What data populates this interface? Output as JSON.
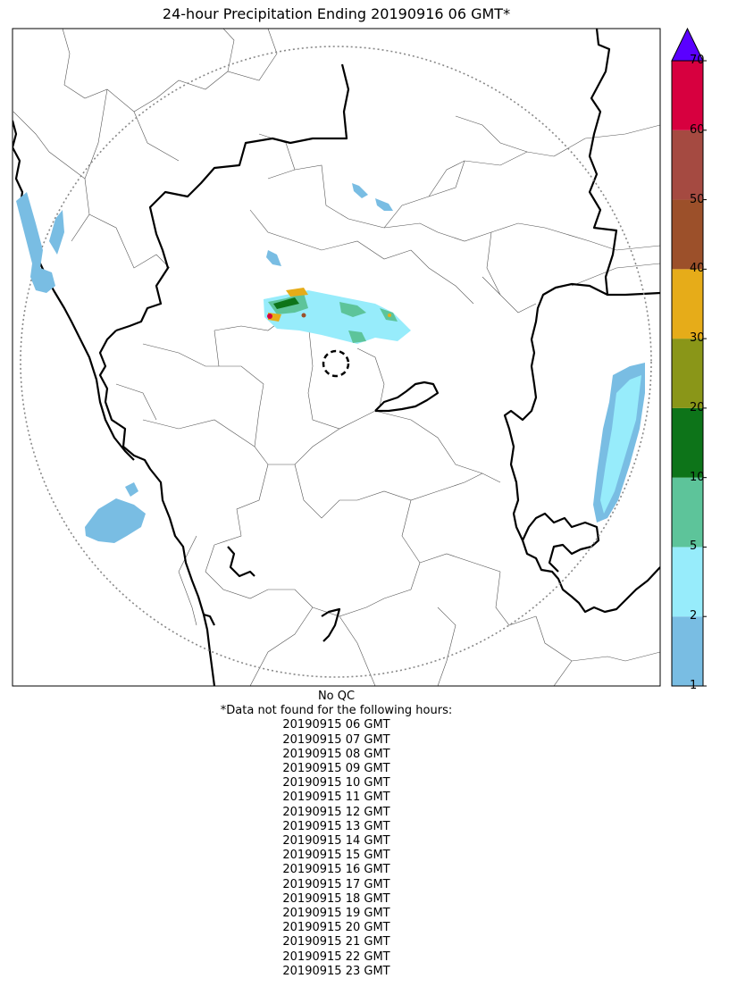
{
  "title": "24-hour Precipitation Ending 20190916 06 GMT*",
  "colorbar": {
    "tick_labels": [
      "1",
      "2",
      "5",
      "10",
      "20",
      "30",
      "40",
      "50",
      "60",
      "70"
    ],
    "colors": [
      "#79bde3",
      "#97ecfb",
      "#5dc49a",
      "#0d7419",
      "#8a9618",
      "#e6ac19",
      "#9c502a",
      "#a54a41",
      "#d7003f"
    ],
    "extend_color": "#5a00ff"
  },
  "footer": {
    "qc_note": "No QC",
    "missing_heading": "*Data not found for the following hours:",
    "missing_hours": [
      "20190915 06 GMT",
      "20190915 07 GMT",
      "20190915 08 GMT",
      "20190915 09 GMT",
      "20190915 10 GMT",
      "20190915 11 GMT",
      "20190915 12 GMT",
      "20190915 13 GMT",
      "20190915 14 GMT",
      "20190915 15 GMT",
      "20190915 16 GMT",
      "20190915 17 GMT",
      "20190915 18 GMT",
      "20190915 19 GMT",
      "20190915 20 GMT",
      "20190915 21 GMT",
      "20190915 22 GMT",
      "20190915 23 GMT"
    ]
  }
}
